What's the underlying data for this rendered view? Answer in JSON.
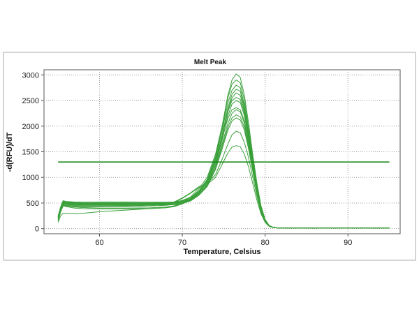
{
  "chart_data": {
    "type": "line",
    "title": "Melt Peak",
    "xlabel": "Temperature, Celsius",
    "ylabel": "-d(RFU)/dT",
    "xlim": [
      53.3,
      96.3
    ],
    "ylim": [
      -100,
      3100
    ],
    "x_ticks": [
      60,
      70,
      80,
      90
    ],
    "y_ticks": [
      0,
      500,
      1000,
      1500,
      2000,
      2500,
      3000
    ],
    "grid": true,
    "grid_style": "dotted",
    "legend": "none",
    "line_color": "#3aa03a",
    "threshold_color": "#1e8a1e",
    "threshold": {
      "x": [
        55,
        95
      ],
      "y": 1300
    },
    "x": [
      55,
      55.3,
      55.6,
      56,
      57,
      58,
      60,
      63,
      66,
      68,
      69,
      70,
      71,
      72,
      73,
      74,
      74.8,
      75.5,
      76,
      76.5,
      77,
      77.5,
      78,
      78.5,
      79,
      79.5,
      80,
      80.5,
      81,
      81.5,
      82,
      83,
      85,
      88,
      90,
      92,
      95
    ],
    "series": [
      {
        "values": [
          250,
          420,
          545,
          530,
          520,
          515,
          520,
          520,
          515,
          515,
          520,
          550,
          620,
          780,
          1000,
          1450,
          2000,
          2600,
          2900,
          3020,
          2950,
          2600,
          2050,
          1450,
          900,
          450,
          180,
          60,
          25,
          15,
          15,
          15,
          15,
          15,
          15,
          15,
          10
        ]
      },
      {
        "values": [
          240,
          410,
          530,
          520,
          510,
          505,
          505,
          505,
          505,
          510,
          515,
          540,
          600,
          740,
          960,
          1400,
          1950,
          2550,
          2820,
          2900,
          2850,
          2500,
          1950,
          1380,
          850,
          420,
          170,
          55,
          25,
          15,
          15,
          15,
          15,
          15,
          15,
          15,
          10
        ]
      },
      {
        "values": [
          230,
          400,
          520,
          510,
          500,
          495,
          495,
          495,
          495,
          500,
          505,
          530,
          590,
          720,
          940,
          1370,
          1900,
          2450,
          2700,
          2800,
          2750,
          2400,
          1880,
          1330,
          820,
          400,
          165,
          55,
          25,
          15,
          15,
          15,
          15,
          15,
          15,
          15,
          10
        ]
      },
      {
        "values": [
          220,
          390,
          510,
          505,
          495,
          490,
          490,
          490,
          490,
          495,
          500,
          520,
          570,
          700,
          900,
          1300,
          1800,
          2300,
          2550,
          2650,
          2600,
          2300,
          1800,
          1280,
          790,
          385,
          160,
          55,
          25,
          15,
          15,
          15,
          15,
          15,
          15,
          15,
          10
        ]
      },
      {
        "values": [
          210,
          380,
          500,
          495,
          485,
          480,
          480,
          480,
          480,
          485,
          490,
          510,
          560,
          680,
          860,
          1220,
          1650,
          2050,
          2250,
          2320,
          2280,
          2050,
          1650,
          1180,
          740,
          365,
          150,
          50,
          25,
          15,
          15,
          15,
          15,
          15,
          15,
          15,
          10
        ]
      },
      {
        "values": [
          200,
          370,
          490,
          485,
          475,
          470,
          470,
          470,
          470,
          475,
          480,
          500,
          550,
          660,
          840,
          1180,
          1600,
          1980,
          2160,
          2220,
          2180,
          1980,
          1600,
          1150,
          720,
          355,
          145,
          50,
          25,
          15,
          15,
          15,
          15,
          15,
          15,
          15,
          10
        ]
      },
      {
        "values": [
          190,
          360,
          480,
          475,
          465,
          460,
          460,
          460,
          460,
          465,
          470,
          490,
          540,
          650,
          820,
          1150,
          1550,
          1920,
          2100,
          2160,
          2120,
          1920,
          1550,
          1120,
          700,
          345,
          140,
          50,
          25,
          15,
          15,
          15,
          15,
          15,
          15,
          15,
          10
        ]
      },
      {
        "values": [
          170,
          340,
          460,
          460,
          455,
          455,
          455,
          460,
          470,
          490,
          520,
          600,
          700,
          820,
          880,
          1050,
          1350,
          1650,
          1830,
          1900,
          1870,
          1680,
          1380,
          1000,
          640,
          320,
          130,
          45,
          20,
          15,
          15,
          15,
          15,
          15,
          15,
          15,
          10
        ]
      },
      {
        "values": [
          150,
          320,
          440,
          445,
          440,
          440,
          440,
          445,
          455,
          475,
          510,
          590,
          690,
          800,
          860,
          1000,
          1250,
          1480,
          1590,
          1620,
          1600,
          1450,
          1200,
          880,
          560,
          290,
          120,
          40,
          20,
          15,
          15,
          15,
          15,
          15,
          15,
          15,
          10
        ]
      },
      {
        "values": [
          230,
          390,
          470,
          450,
          420,
          410,
          400,
          400,
          405,
          420,
          445,
          500,
          600,
          740,
          930,
          1330,
          1820,
          2350,
          2620,
          2720,
          2680,
          2350,
          1850,
          1300,
          800,
          390,
          160,
          55,
          25,
          15,
          15,
          15,
          15,
          15,
          15,
          15,
          10
        ]
      },
      {
        "values": [
          210,
          370,
          450,
          430,
          400,
          390,
          385,
          385,
          390,
          405,
          430,
          480,
          580,
          710,
          900,
          1300,
          1780,
          2280,
          2500,
          2560,
          2520,
          2250,
          1780,
          1260,
          780,
          380,
          155,
          55,
          25,
          15,
          15,
          15,
          15,
          15,
          15,
          15,
          10
        ]
      },
      {
        "values": [
          120,
          250,
          300,
          300,
          290,
          300,
          330,
          360,
          390,
          410,
          440,
          500,
          600,
          740,
          920,
          1300,
          1750,
          2150,
          2320,
          2360,
          2320,
          2100,
          1700,
          1200,
          750,
          370,
          150,
          50,
          25,
          15,
          15,
          15,
          15,
          15,
          15,
          15,
          10
        ]
      },
      {
        "values": [
          160,
          330,
          450,
          440,
          430,
          425,
          425,
          430,
          440,
          455,
          470,
          500,
          560,
          680,
          870,
          1250,
          1720,
          2200,
          2430,
          2500,
          2460,
          2200,
          1750,
          1250,
          770,
          375,
          155,
          55,
          25,
          15,
          15,
          15,
          15,
          15,
          15,
          15,
          10
        ]
      }
    ]
  }
}
